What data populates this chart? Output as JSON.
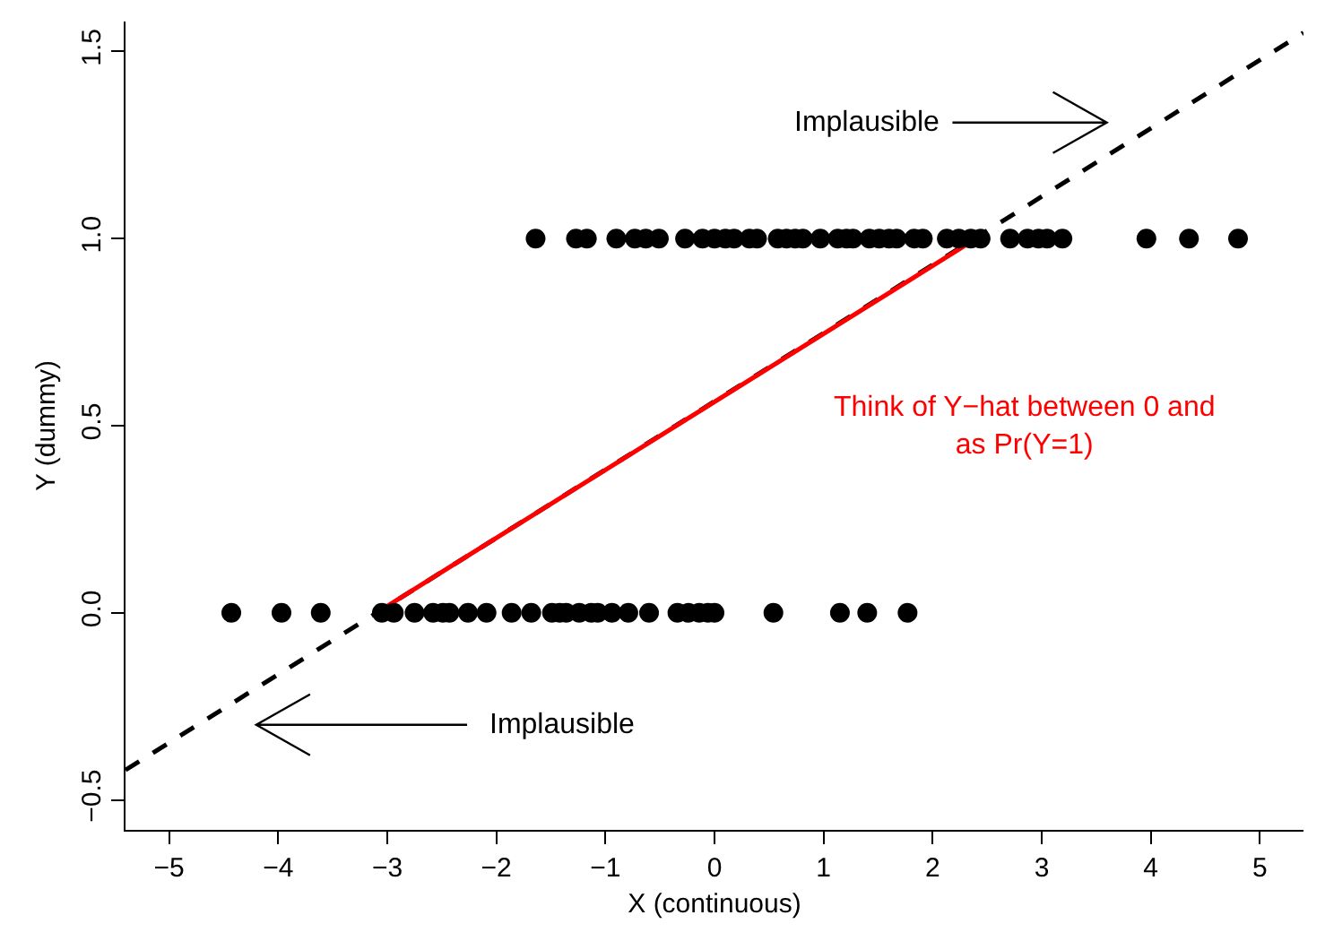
{
  "chart_data": {
    "type": "scatter",
    "xlabel": "X (continuous)",
    "ylabel": "Y (dummy)",
    "xlim": [
      -5.4,
      5.4
    ],
    "ylim": [
      -0.58,
      1.58
    ],
    "xticks": [
      {
        "value": -5,
        "label": "−5"
      },
      {
        "value": -4,
        "label": "−4"
      },
      {
        "value": -3,
        "label": "−3"
      },
      {
        "value": -2,
        "label": "−2"
      },
      {
        "value": -1,
        "label": "−1"
      },
      0,
      1,
      2,
      3,
      4,
      5
    ],
    "yticks": [
      {
        "value": -0.5,
        "label": "−0.5"
      },
      {
        "value": 0,
        "label": "0.0"
      },
      {
        "value": 0.5,
        "label": "0.5"
      },
      {
        "value": 1,
        "label": "1.0"
      },
      {
        "value": 1.5,
        "label": "1.5"
      }
    ],
    "grid": false,
    "marker": "circle",
    "series": [
      {
        "type": "line",
        "color": "#000000",
        "line_style": "dashed",
        "marker": "none",
        "x": [
          -5.4,
          5.4
        ],
        "values": [
          -0.42,
          1.55
        ]
      },
      {
        "type": "line",
        "color": "#ff0000",
        "line_style": "solid",
        "marker": "none",
        "x": [
          -3.1,
          2.4
        ],
        "values": [
          0,
          1
        ]
      },
      {
        "color": "#000000",
        "x": [
          -1.64,
          -1.27,
          -1.17,
          -0.9,
          -0.73,
          -0.63,
          -0.51,
          -0.27,
          -0.11,
          0,
          0.1,
          0.18,
          0.32,
          0.39,
          0.58,
          0.66,
          0.74,
          0.81,
          0.97,
          1.13,
          1.21,
          1.27,
          1.42,
          1.51,
          1.6,
          1.67,
          1.83,
          1.91,
          2.13,
          2.24,
          2.35,
          2.44,
          2.71,
          2.87,
          2.97,
          3.05,
          3.19,
          3.96,
          4.35,
          4.8,
          -4.43,
          -3.97,
          -3.61,
          -3.05,
          -2.94,
          -2.75,
          -2.58,
          -2.49,
          -2.43,
          -2.26,
          -2.09,
          -1.86,
          -1.68,
          -1.49,
          -1.42,
          -1.36,
          -1.24,
          -1.13,
          -1.07,
          -0.94,
          -0.79,
          -0.6,
          -0.34,
          -0.24,
          -0.14,
          -0.06,
          0,
          0.54,
          1.15,
          1.4,
          1.77
        ],
        "values": [
          1,
          1,
          1,
          1,
          1,
          1,
          1,
          1,
          1,
          1,
          1,
          1,
          1,
          1,
          1,
          1,
          1,
          1,
          1,
          1,
          1,
          1,
          1,
          1,
          1,
          1,
          1,
          1,
          1,
          1,
          1,
          1,
          1,
          1,
          1,
          1,
          1,
          1,
          1,
          1,
          0,
          0,
          0,
          0,
          0,
          0,
          0,
          0,
          0,
          0,
          0,
          0,
          0,
          0,
          0,
          0,
          0,
          0,
          0,
          0,
          0,
          0,
          0,
          0,
          0,
          0,
          0,
          0,
          0,
          0,
          0
        ]
      }
    ],
    "annotations": [
      "Implausible",
      "Implausible",
      "Think of Y−hat between 0 and\nas Pr(Y=1)"
    ]
  }
}
